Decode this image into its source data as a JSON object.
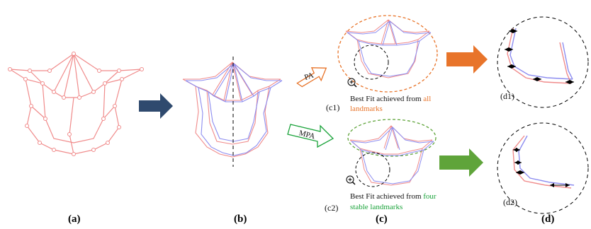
{
  "panel_labels": {
    "a": "(a)",
    "b": "(b)",
    "c": "(c)",
    "d": "(d)"
  },
  "sub_labels": {
    "c1": "(c1)",
    "c2": "(c2)",
    "d1": "(d1)",
    "d2": "(d2)"
  },
  "arrow_labels": {
    "pa": "PA",
    "mpa": "MPA"
  },
  "captions": {
    "c1_line1_prefix": "Best Fit achieved from ",
    "c1_line1_highlight": "all",
    "c1_line2": "landmarks",
    "c2_line1_prefix": "Best Fit achieved from ",
    "c2_line1_highlight": "four",
    "c2_line2": "stable landmarks"
  },
  "colors": {
    "orange": "#e8742a",
    "green": "#5fa43a",
    "navy": "#2f4a6e",
    "pink": "#f08b8b",
    "blue": "#8d8df0",
    "highlight_green": "#1aa33a"
  },
  "icons": {
    "magnifier": "magnifier-icon"
  }
}
